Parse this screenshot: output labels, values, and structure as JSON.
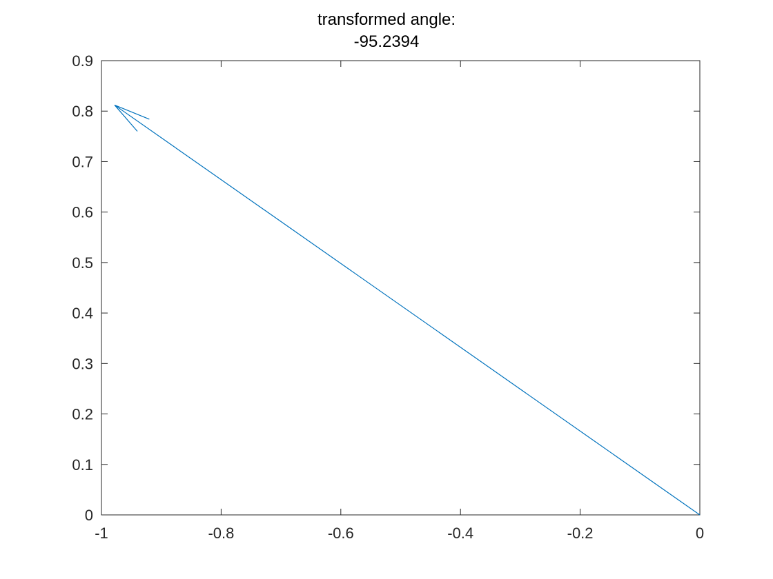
{
  "chart_data": {
    "type": "line",
    "title_lines": [
      "transformed angle:",
      "-95.2394"
    ],
    "xlabel": "",
    "ylabel": "",
    "xlim": [
      -1,
      0
    ],
    "ylim": [
      0,
      0.9
    ],
    "xticks": [
      -1,
      -0.8,
      -0.6,
      -0.4,
      -0.2,
      0
    ],
    "xtick_labels": [
      "-1",
      "-0.8",
      "-0.6",
      "-0.4",
      "-0.2",
      "0"
    ],
    "yticks": [
      0,
      0.1,
      0.2,
      0.3,
      0.4,
      0.5,
      0.6,
      0.7,
      0.8,
      0.9
    ],
    "ytick_labels": [
      "0",
      "0.1",
      "0.2",
      "0.3",
      "0.4",
      "0.5",
      "0.6",
      "0.7",
      "0.8",
      "0.9"
    ],
    "grid": false,
    "box": true,
    "series": [
      {
        "kind": "arrow",
        "color": "#0072BD",
        "x": [
          0,
          -0.978
        ],
        "y": [
          0,
          0.812
        ],
        "arrowhead": {
          "tip": [
            -0.978,
            0.812
          ],
          "barbs": [
            [
              -0.92,
              0.784
            ],
            [
              -0.94,
              0.76
            ]
          ]
        }
      }
    ]
  }
}
